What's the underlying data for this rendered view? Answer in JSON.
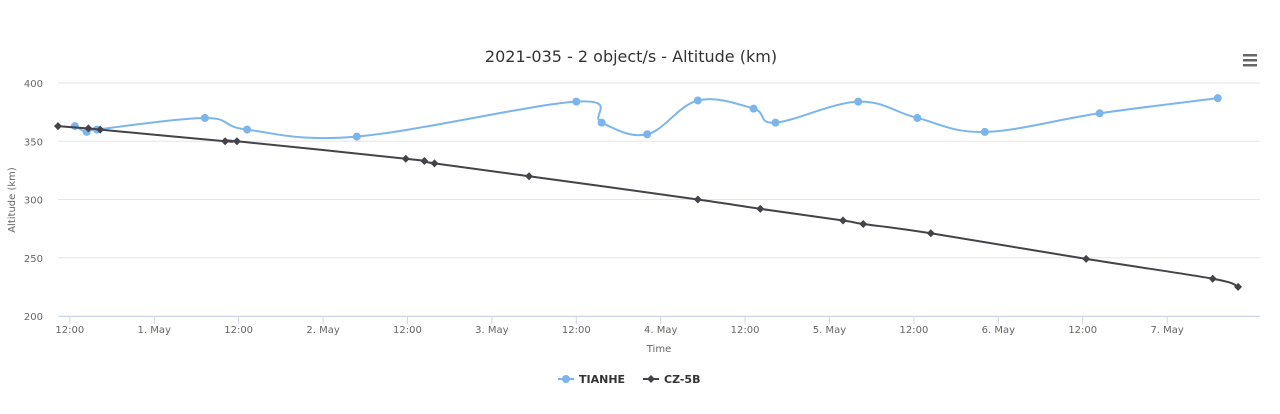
{
  "chart_data": {
    "type": "line",
    "title": "2021-035 - 2 object/s - Altitude (km)",
    "xlabel": "Time",
    "ylabel": "Altitude (km)",
    "ylim": [
      200,
      400
    ],
    "y_ticks": [
      200,
      250,
      300,
      350,
      400
    ],
    "x_unit": "days since 30 Apr 00:00",
    "x_range": [
      0.5,
      7.55
    ],
    "x_ticks": [
      {
        "x": 0.5,
        "label": "12:00"
      },
      {
        "x": 1.0,
        "label": "1. May"
      },
      {
        "x": 1.5,
        "label": "12:00"
      },
      {
        "x": 2.0,
        "label": "2. May"
      },
      {
        "x": 2.5,
        "label": "12:00"
      },
      {
        "x": 3.0,
        "label": "3. May"
      },
      {
        "x": 3.5,
        "label": "12:00"
      },
      {
        "x": 4.0,
        "label": "4. May"
      },
      {
        "x": 4.5,
        "label": "12:00"
      },
      {
        "x": 5.0,
        "label": "5. May"
      },
      {
        "x": 5.5,
        "label": "12:00"
      },
      {
        "x": 6.0,
        "label": "6. May"
      },
      {
        "x": 6.5,
        "label": "12:00"
      },
      {
        "x": 7.0,
        "label": "7. May"
      }
    ],
    "grid": true,
    "legend_position": "bottom-center",
    "series": [
      {
        "name": "TIANHE",
        "color": "#7cb5ec",
        "marker": "circle",
        "points": [
          [
            0.53,
            363
          ],
          [
            0.6,
            358
          ],
          [
            0.66,
            360
          ],
          [
            1.3,
            370
          ],
          [
            1.55,
            360
          ],
          [
            2.2,
            354
          ],
          [
            3.5,
            384
          ],
          [
            3.65,
            366
          ],
          [
            3.92,
            356
          ],
          [
            4.22,
            385
          ],
          [
            4.55,
            378
          ],
          [
            4.68,
            366
          ],
          [
            5.17,
            384
          ],
          [
            5.52,
            370
          ],
          [
            5.92,
            358
          ],
          [
            6.6,
            374
          ],
          [
            7.3,
            387
          ]
        ]
      },
      {
        "name": "CZ-5B",
        "color": "#434348",
        "marker": "diamond",
        "points": [
          [
            0.43,
            363
          ],
          [
            0.61,
            361
          ],
          [
            0.68,
            360
          ],
          [
            1.42,
            350
          ],
          [
            1.49,
            350
          ],
          [
            2.49,
            335
          ],
          [
            2.6,
            333
          ],
          [
            2.66,
            331
          ],
          [
            3.22,
            320
          ],
          [
            4.22,
            300
          ],
          [
            4.59,
            292
          ],
          [
            5.08,
            282
          ],
          [
            5.2,
            279
          ],
          [
            5.6,
            271
          ],
          [
            6.52,
            249
          ],
          [
            7.27,
            232
          ],
          [
            7.42,
            225
          ]
        ]
      }
    ]
  }
}
